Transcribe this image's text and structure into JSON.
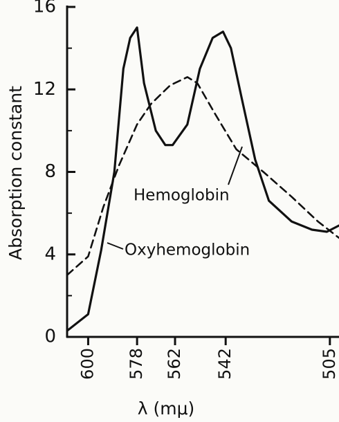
{
  "chart_data": {
    "type": "line",
    "x_label": "λ (mμ)",
    "y_label": "Absorption constant",
    "x_scale": "reciprocal",
    "xlim": [
      610,
      502
    ],
    "xticks": [
      600,
      578,
      562,
      542,
      505
    ],
    "ylim": [
      0,
      16
    ],
    "yticks": [
      0,
      4,
      8,
      12,
      16
    ],
    "yminor_ticks": [
      2,
      6,
      10,
      14
    ],
    "series": [
      {
        "name": "Oxyhemoglobin",
        "color": "#111111",
        "style": "solid",
        "x": [
          610,
          600,
          594,
          588,
          584,
          581,
          578,
          575,
          570,
          566,
          563,
          557,
          552,
          547,
          543,
          540,
          536,
          531,
          526,
          518,
          511,
          506,
          502
        ],
        "values": [
          0.3,
          1.1,
          4.2,
          8,
          13,
          14.5,
          15,
          12.3,
          10,
          9.3,
          9.3,
          10.3,
          13,
          14.5,
          14.8,
          14,
          11.6,
          8.6,
          6.6,
          5.6,
          5.2,
          5.1,
          5.4
        ]
      },
      {
        "name": "Hemoglobin",
        "color": "#111111",
        "style": "dashed",
        "x": [
          610,
          600,
          593,
          586,
          578,
          572,
          564,
          557,
          553,
          546,
          538,
          528,
          518,
          509,
          502
        ],
        "values": [
          3,
          3.9,
          6.3,
          8.3,
          10.3,
          11.3,
          12.2,
          12.6,
          12.3,
          10.8,
          9.1,
          8,
          6.8,
          5.6,
          4.8
        ]
      }
    ]
  }
}
